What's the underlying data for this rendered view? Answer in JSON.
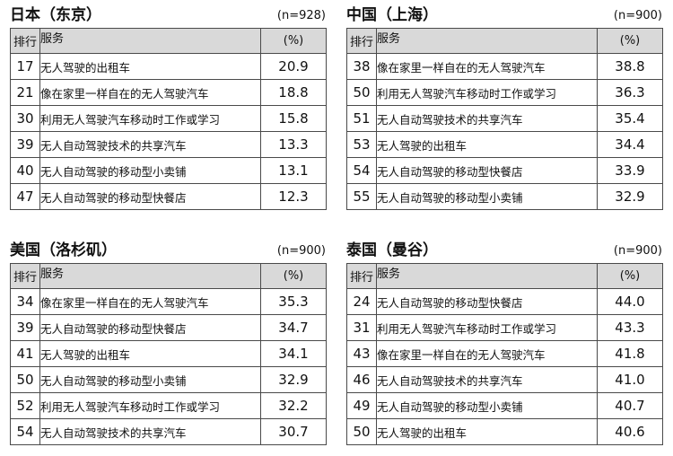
{
  "tables": [
    {
      "title": "日本（东京）",
      "n": "(n=928)",
      "headers": {
        "rank": "排行",
        "service": "服务",
        "percent": "(%)"
      },
      "rows": [
        {
          "rank": "17",
          "service": "无人驾驶的出租车",
          "percent": "20.9"
        },
        {
          "rank": "21",
          "service": "像在家里一样自在的无人驾驶汽车",
          "percent": "18.8"
        },
        {
          "rank": "30",
          "service": "利用无人驾驶汽车移动时工作或学习",
          "percent": "15.8"
        },
        {
          "rank": "39",
          "service": "无人自动驾驶技术的共享汽车",
          "percent": "13.3"
        },
        {
          "rank": "40",
          "service": "无人自动驾驶的移动型小卖铺",
          "percent": "13.1"
        },
        {
          "rank": "47",
          "service": "无人自动驾驶的移动型快餐店",
          "percent": "12.3"
        }
      ]
    },
    {
      "title": "中国（上海）",
      "n": "(n=900)",
      "headers": {
        "rank": "排行",
        "service": "服务",
        "percent": "(%)"
      },
      "rows": [
        {
          "rank": "38",
          "service": "像在家里一样自在的无人驾驶汽车",
          "percent": "38.8"
        },
        {
          "rank": "50",
          "service": "利用无人驾驶汽车移动时工作或学习",
          "percent": "36.3"
        },
        {
          "rank": "51",
          "service": "无人自动驾驶技术的共享汽车",
          "percent": "35.4"
        },
        {
          "rank": "53",
          "service": "无人驾驶的出租车",
          "percent": "34.4"
        },
        {
          "rank": "54",
          "service": "无人自动驾驶的移动型快餐店",
          "percent": "33.9"
        },
        {
          "rank": "55",
          "service": "无人自动驾驶的移动型小卖铺",
          "percent": "32.9"
        }
      ]
    },
    {
      "title": "美国（洛杉矶）",
      "n": "(n=900)",
      "headers": {
        "rank": "排行",
        "service": "服务",
        "percent": "(%)"
      },
      "rows": [
        {
          "rank": "34",
          "service": "像在家里一样自在的无人驾驶汽车",
          "percent": "35.3"
        },
        {
          "rank": "39",
          "service": "无人自动驾驶的移动型快餐店",
          "percent": "34.7"
        },
        {
          "rank": "41",
          "service": "无人驾驶的出租车",
          "percent": "34.1"
        },
        {
          "rank": "50",
          "service": "无人自动驾驶的移动型小卖铺",
          "percent": "32.9"
        },
        {
          "rank": "52",
          "service": "利用无人驾驶汽车移动时工作或学习",
          "percent": "32.2"
        },
        {
          "rank": "54",
          "service": "无人自动驾驶技术的共享汽车",
          "percent": "30.7"
        }
      ]
    },
    {
      "title": "泰国（曼谷）",
      "n": "(n=900)",
      "headers": {
        "rank": "排行",
        "service": "服务",
        "percent": "(%)"
      },
      "rows": [
        {
          "rank": "24",
          "service": "无人自动驾驶的移动型快餐店",
          "percent": "44.0"
        },
        {
          "rank": "31",
          "service": "利用无人驾驶汽车移动时工作或学习",
          "percent": "43.3"
        },
        {
          "rank": "43",
          "service": "像在家里一样自在的无人驾驶汽车",
          "percent": "41.8"
        },
        {
          "rank": "46",
          "service": "无人自动驾驶技术的共享汽车",
          "percent": "41.0"
        },
        {
          "rank": "49",
          "service": "无人自动驾驶的移动型小卖铺",
          "percent": "40.7"
        },
        {
          "rank": "50",
          "service": "无人驾驶的出租车",
          "percent": "40.6"
        }
      ]
    }
  ]
}
